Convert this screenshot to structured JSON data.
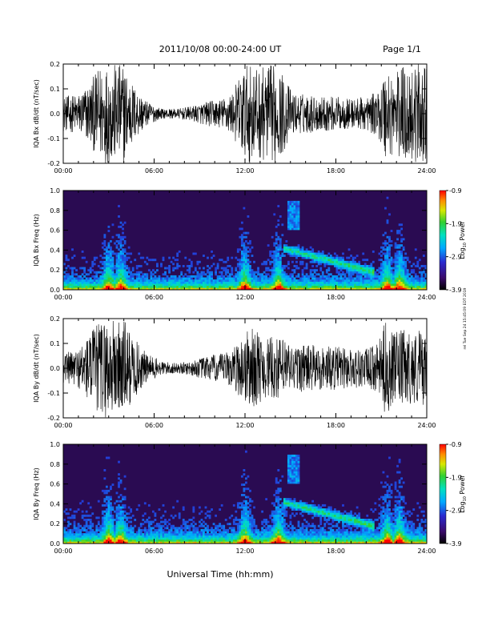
{
  "header": {
    "date_range": "2011/10/08  00:00-24:00 UT",
    "page": "Page 1/1"
  },
  "footer": {
    "xaxis_title": "Universal Time (hh:mm)",
    "side_stamp": "rel Tue Sep 24 15:45:09 EDT 2019"
  },
  "colors": {
    "trace": "#000000",
    "spectrogram_background": "#2a0b52"
  },
  "chart_data": [
    {
      "type": "line",
      "ylabel": "IQA Bx dB/dt (nT/sec)",
      "x_ticks": [
        "00:00",
        "06:00",
        "12:00",
        "18:00",
        "24:00"
      ],
      "xlim": [
        0,
        24
      ],
      "ylim": [
        -0.2,
        0.2
      ],
      "y_ticks": [
        "-0.2",
        "-0.1",
        "0.0",
        "0.1",
        "0.2"
      ],
      "y_tick_values": [
        -0.2,
        -0.1,
        0.0,
        0.1,
        0.2
      ],
      "x": [
        0,
        1,
        1.8,
        2.5,
        3.0,
        3.6,
        4.0,
        4.6,
        5.5,
        6.5,
        7.5,
        8.5,
        9.5,
        10.5,
        11.2,
        11.8,
        12.3,
        12.8,
        13.3,
        14.0,
        14.6,
        15.2,
        16.0,
        17.0,
        18.0,
        19.0,
        20.0,
        20.8,
        21.3,
        21.8,
        22.5,
        23.0,
        23.6,
        24
      ],
      "envelope": [
        0.07,
        0.08,
        0.13,
        0.2,
        0.2,
        0.2,
        0.2,
        0.12,
        0.05,
        0.02,
        0.02,
        0.03,
        0.05,
        0.06,
        0.09,
        0.18,
        0.2,
        0.18,
        0.19,
        0.2,
        0.15,
        0.08,
        0.08,
        0.07,
        0.07,
        0.06,
        0.07,
        0.09,
        0.2,
        0.16,
        0.2,
        0.2,
        0.2,
        0.18
      ]
    },
    {
      "type": "heatmap",
      "ylabel": "IQA Bx Freq (Hz)",
      "x_ticks": [
        "00:00",
        "06:00",
        "12:00",
        "18:00",
        "24:00"
      ],
      "xlim": [
        0,
        24
      ],
      "ylim": [
        0.0,
        1.0
      ],
      "y_ticks": [
        "0.0",
        "0.2",
        "0.4",
        "0.6",
        "0.8",
        "1.0"
      ],
      "y_tick_values": [
        0.0,
        0.2,
        0.4,
        0.6,
        0.8,
        1.0
      ],
      "colorbar": {
        "label": "Log10 Power",
        "label_main": "Log",
        "label_sub": "10",
        "label_rest": " Power",
        "ticks": [
          "-0.9",
          "-1.9",
          "-2.9",
          "-3.9"
        ],
        "tick_values": [
          -0.9,
          -1.9,
          -2.9,
          -3.9
        ],
        "range": [
          -3.9,
          -0.9
        ]
      }
    },
    {
      "type": "line",
      "ylabel": "IQA By dB/dt (nT/sec)",
      "x_ticks": [
        "00:00",
        "06:00",
        "12:00",
        "18:00",
        "24:00"
      ],
      "xlim": [
        0,
        24
      ],
      "ylim": [
        -0.2,
        0.2
      ],
      "y_ticks": [
        "-0.2",
        "-0.1",
        "0.0",
        "0.1",
        "0.2"
      ],
      "y_tick_values": [
        -0.2,
        -0.1,
        0.0,
        0.1,
        0.2
      ],
      "x": [
        0,
        1,
        1.8,
        2.5,
        3.0,
        3.6,
        4.0,
        4.6,
        5.5,
        6.5,
        7.5,
        8.5,
        9.5,
        10.5,
        11.2,
        11.8,
        12.3,
        12.8,
        13.3,
        14.0,
        14.6,
        15.2,
        16.0,
        17.0,
        18.0,
        19.0,
        20.0,
        20.8,
        21.3,
        21.8,
        22.5,
        23.0,
        23.6,
        24
      ],
      "envelope": [
        0.06,
        0.08,
        0.15,
        0.2,
        0.2,
        0.2,
        0.2,
        0.13,
        0.06,
        0.03,
        0.02,
        0.03,
        0.05,
        0.06,
        0.08,
        0.13,
        0.17,
        0.15,
        0.12,
        0.13,
        0.12,
        0.09,
        0.1,
        0.09,
        0.09,
        0.08,
        0.08,
        0.1,
        0.2,
        0.14,
        0.16,
        0.14,
        0.17,
        0.12
      ]
    },
    {
      "type": "heatmap",
      "ylabel": "IQA By Freq (Hz)",
      "x_ticks": [
        "00:00",
        "06:00",
        "12:00",
        "18:00",
        "24:00"
      ],
      "xlim": [
        0,
        24
      ],
      "ylim": [
        0.0,
        1.0
      ],
      "y_ticks": [
        "0.0",
        "0.2",
        "0.4",
        "0.6",
        "0.8",
        "1.0"
      ],
      "y_tick_values": [
        0.0,
        0.2,
        0.4,
        0.6,
        0.8,
        1.0
      ],
      "colorbar": {
        "label": "Log10 Power",
        "label_main": "Log",
        "label_sub": "10",
        "label_rest": " Power",
        "ticks": [
          "-0.9",
          "-1.9",
          "-2.9",
          "-3.9"
        ],
        "tick_values": [
          -0.9,
          -1.9,
          -2.9,
          -3.9
        ],
        "range": [
          -3.9,
          -0.9
        ]
      }
    }
  ]
}
